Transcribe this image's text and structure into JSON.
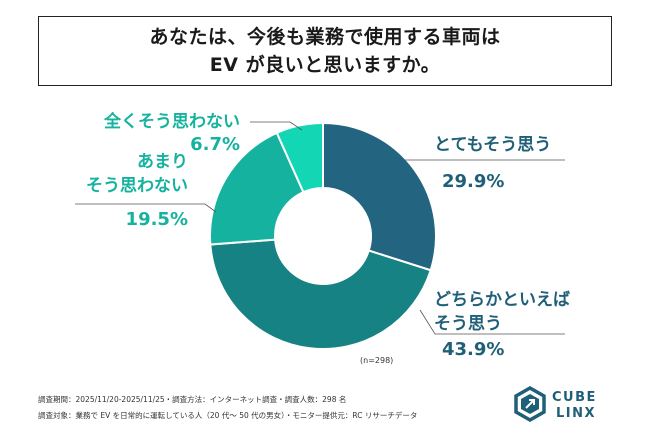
{
  "title": {
    "line1": "あなたは、今後も業務で使用する車両は",
    "line2": "EV が良いと思いますか。"
  },
  "sample_note": "(n=298)",
  "footer": {
    "line1": "調査期間：2025/11/20-2025/11/25・調査方法：インターネット調査・調査人数：298 名",
    "line2": "調査対象：業務で EV を日常的に運転している人（20 代〜 50 代の男女）・モニター提供元：RC リサーチデータ"
  },
  "logo": {
    "line1": "CUBE",
    "line2": "LINX"
  },
  "colors": {
    "series": [
      "#236580",
      "#168283",
      "#15b39f",
      "#12d6b4"
    ],
    "label_dark": "#1f5f78",
    "label_light": "#15b39f"
  },
  "chart_data": {
    "type": "pie",
    "donut": true,
    "title": "あなたは、今後も業務で使用する車両は EV が良いと思いますか。",
    "categories": [
      "とてもそう思う",
      "どちらかといえばそう思う",
      "あまりそう思わない",
      "全くそう思わない"
    ],
    "values": [
      29.9,
      43.9,
      19.5,
      6.7
    ],
    "value_labels": [
      "29.9%",
      "43.9%",
      "19.5%",
      "6.7%"
    ],
    "label_lines": [
      [
        "とてもそう思う"
      ],
      [
        "どちらかといえば",
        "そう思う"
      ],
      [
        "あまり",
        "そう思わない"
      ],
      [
        "全くそう思わない"
      ]
    ],
    "n": 298
  }
}
